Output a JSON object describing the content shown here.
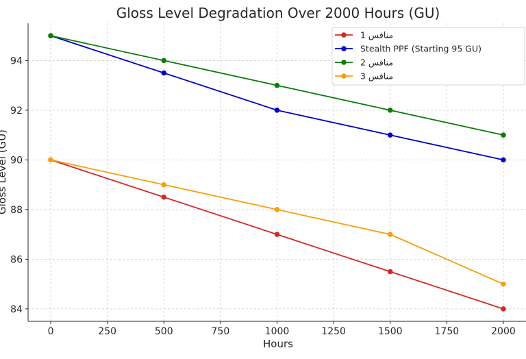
{
  "chart_data": {
    "type": "line",
    "title": "Gloss Level Degradation Over 2000 Hours (GU)",
    "xlabel": "Hours",
    "ylabel": "Gloss Level (GU)",
    "x": [
      0,
      500,
      1000,
      1500,
      2000
    ],
    "xlim": [
      -100,
      2100
    ],
    "ylim": [
      83.5,
      95.5
    ],
    "xticks": [
      0,
      250,
      500,
      750,
      1000,
      1250,
      1500,
      1750,
      2000
    ],
    "yticks": [
      84,
      86,
      88,
      90,
      92,
      94
    ],
    "grid": true,
    "legend_position": "top-right",
    "series": [
      {
        "name": "منافس 1",
        "values": [
          90,
          88.5,
          87,
          85.5,
          84
        ],
        "color": "#d62728"
      },
      {
        "name": "Stealth PPF (Starting 95 GU)",
        "values": [
          95,
          93.5,
          92,
          91,
          90
        ],
        "color": "#0000cc"
      },
      {
        "name": "منافس 2",
        "values": [
          95,
          94,
          93,
          92,
          91
        ],
        "color": "#0a7d0a"
      },
      {
        "name": "منافس 3",
        "values": [
          90,
          89,
          88,
          87,
          85
        ],
        "color": "#f5a00f"
      }
    ]
  }
}
